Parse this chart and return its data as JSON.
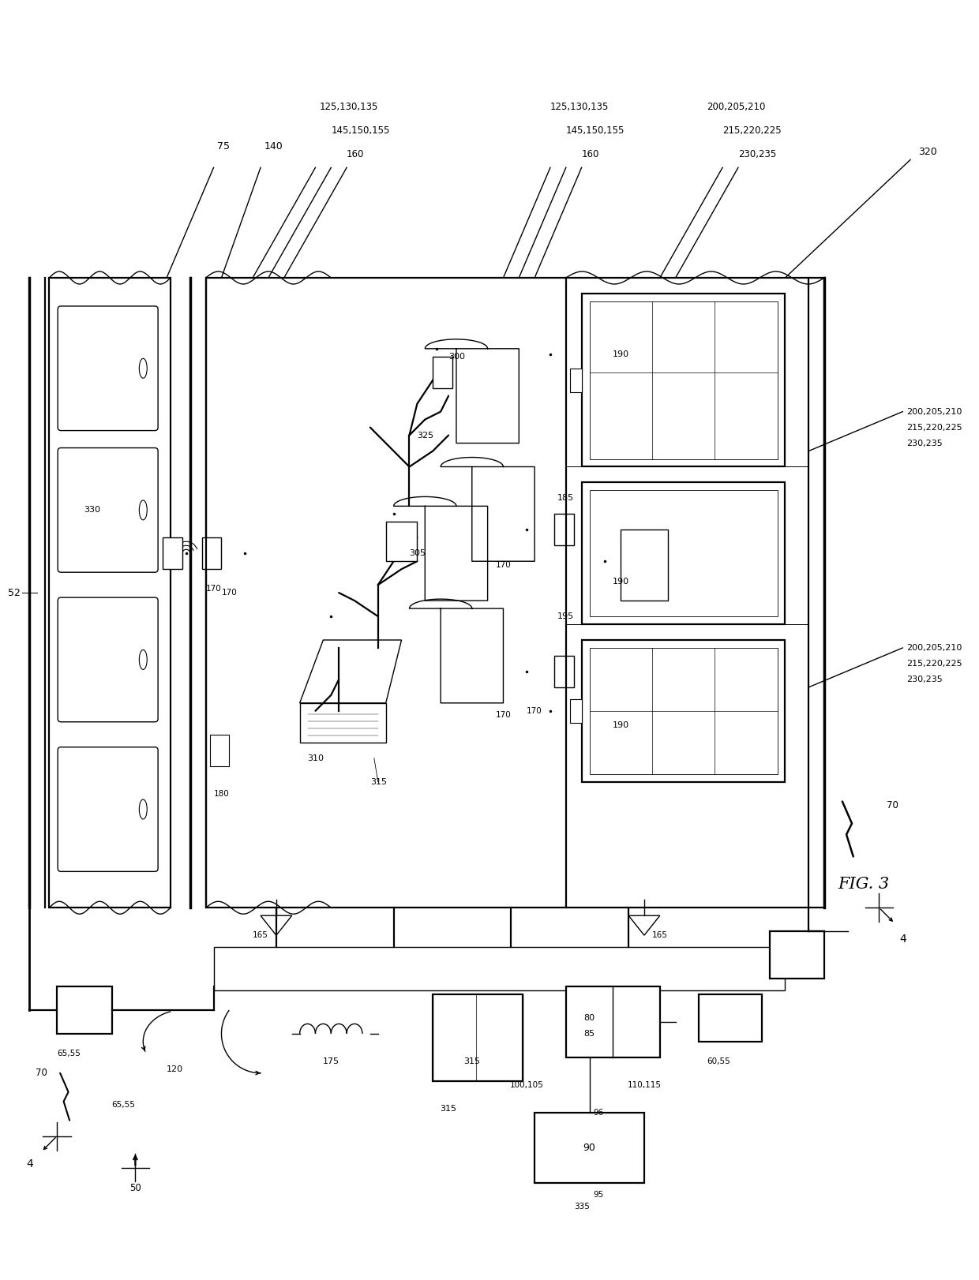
{
  "bg_color": "#ffffff",
  "lc": "#000000",
  "fig_label": "FIG. 3",
  "fig_w": 12.4,
  "fig_h": 16.22
}
